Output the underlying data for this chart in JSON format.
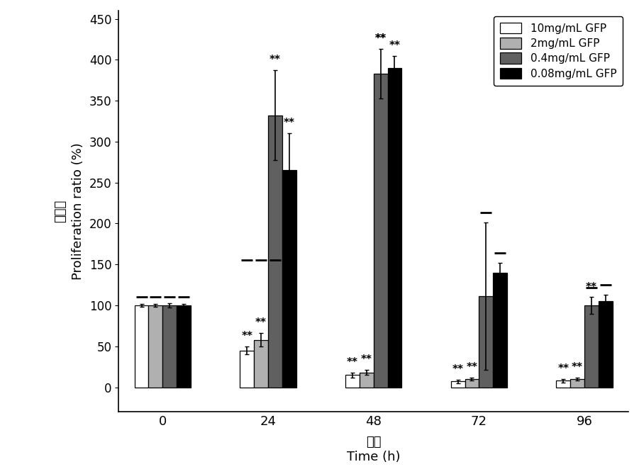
{
  "time_points": [
    0,
    24,
    48,
    72,
    96
  ],
  "series_order": [
    "10mg/mL GFP",
    "2mg/mL GFP",
    "0.4mg/mL GFP",
    "0.08mg/mL GFP"
  ],
  "series": {
    "10mg/mL GFP": {
      "values": [
        100,
        45,
        15,
        7,
        8
      ],
      "errors": [
        2,
        5,
        3,
        2,
        2
      ],
      "color": "#ffffff",
      "edgecolor": "#000000"
    },
    "2mg/mL GFP": {
      "values": [
        100,
        58,
        18,
        10,
        10
      ],
      "errors": [
        2,
        8,
        3,
        2,
        2
      ],
      "color": "#b0b0b0",
      "edgecolor": "#000000"
    },
    "0.4mg/mL GFP": {
      "values": [
        100,
        332,
        383,
        111,
        100
      ],
      "errors": [
        3,
        55,
        30,
        90,
        10
      ],
      "color": "#606060",
      "edgecolor": "#000000"
    },
    "0.08mg/mL GFP": {
      "values": [
        100,
        265,
        390,
        140,
        105
      ],
      "errors": [
        2,
        45,
        15,
        12,
        8
      ],
      "color": "#000000",
      "edgecolor": "#000000"
    }
  },
  "ylabel_en": "Proliferation ratio (%)",
  "ylabel_cn": "增殖率",
  "xlabel_en": "Time (h)",
  "xlabel_cn": "时间",
  "ylim": [
    -30,
    460
  ],
  "yticks": [
    0,
    50,
    100,
    150,
    200,
    250,
    300,
    350,
    400,
    450
  ],
  "bar_width": 0.16,
  "background_color": "#ffffff",
  "figsize": [
    9.01,
    6.69
  ],
  "dpi": 100
}
